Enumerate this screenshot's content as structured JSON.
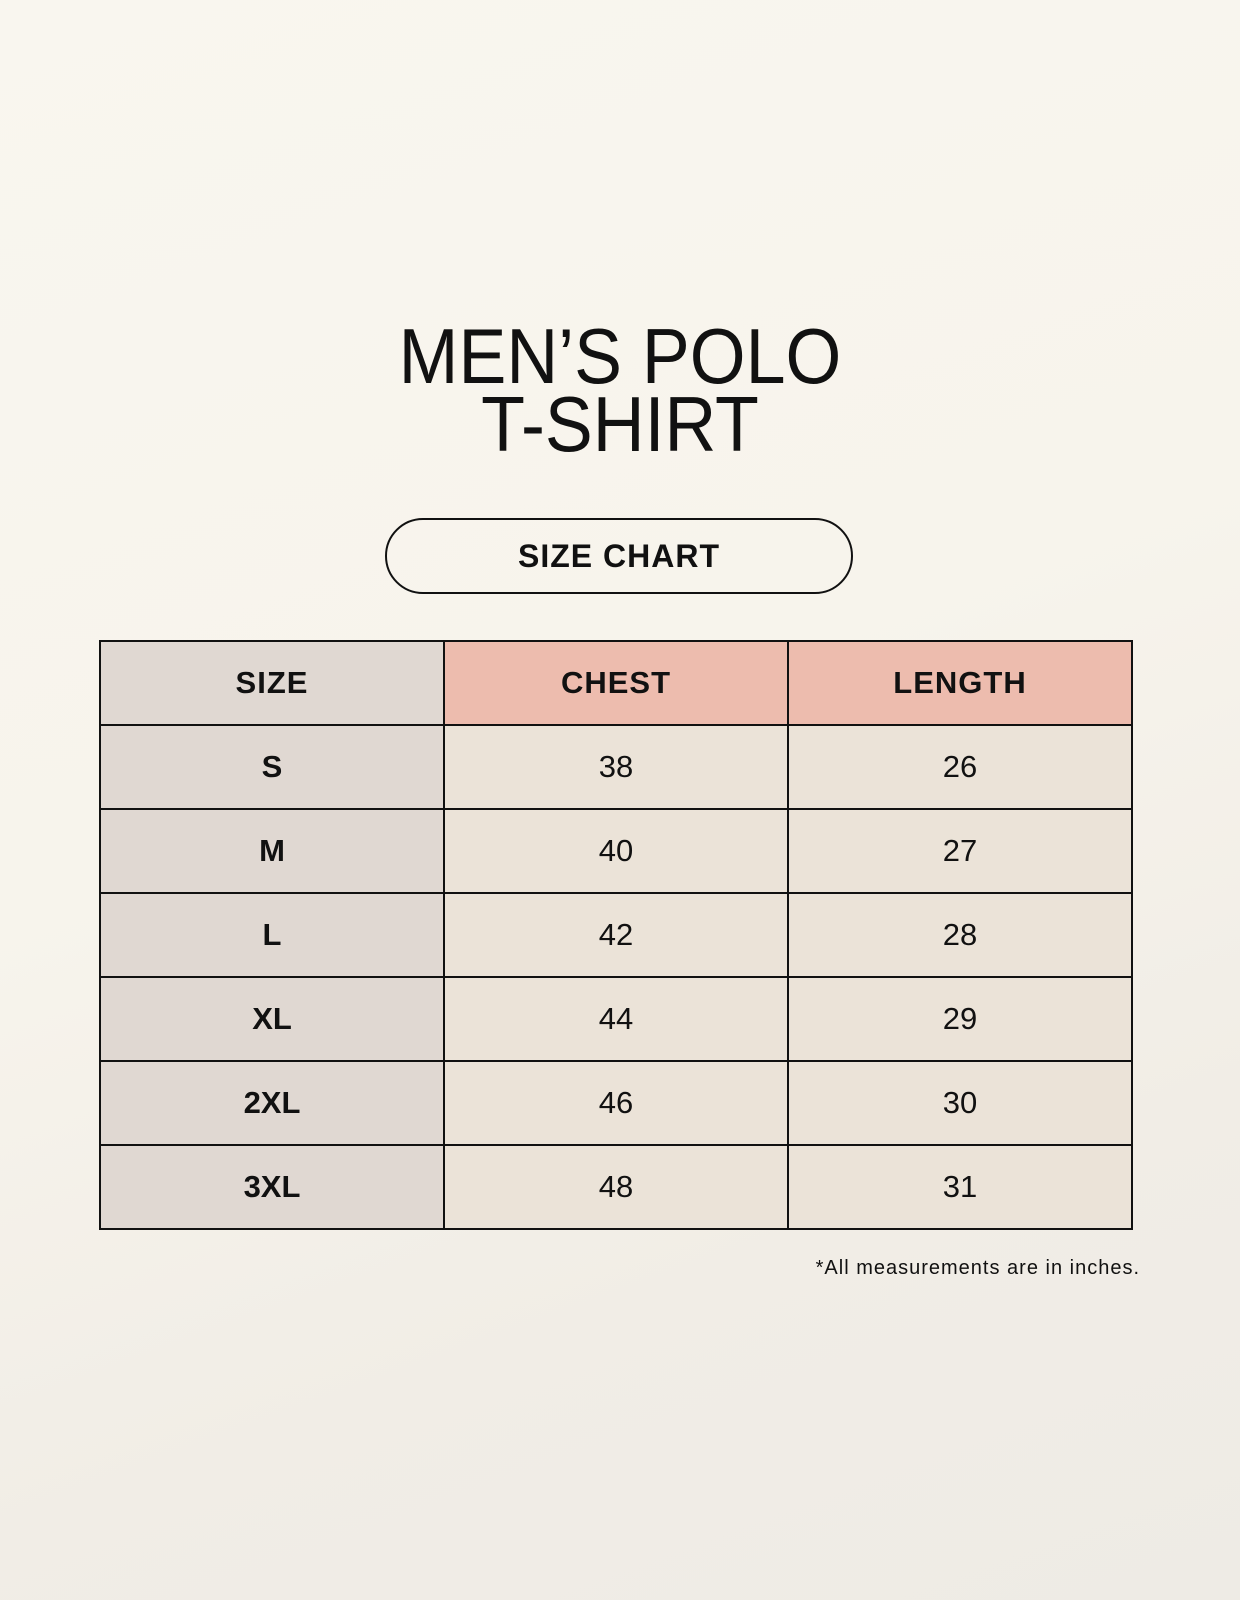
{
  "title": {
    "line1": "MEN’S POLO",
    "line2": "T-SHIRT"
  },
  "badge": "SIZE CHART",
  "table": {
    "headers": [
      "SIZE",
      "CHEST",
      "LENGTH"
    ],
    "rows": [
      [
        "S",
        "38",
        "26"
      ],
      [
        "M",
        "40",
        "27"
      ],
      [
        "L",
        "42",
        "28"
      ],
      [
        "XL",
        "44",
        "29"
      ],
      [
        "2XL",
        "46",
        "30"
      ],
      [
        "3XL",
        "48",
        "31"
      ]
    ]
  },
  "footnote": "*All measurements are in inches.",
  "colors": {
    "background": "#f8f5ee",
    "size_column": "#e0d8d2",
    "header_accent": "#edbcae",
    "cell": "#ebe3d8"
  }
}
